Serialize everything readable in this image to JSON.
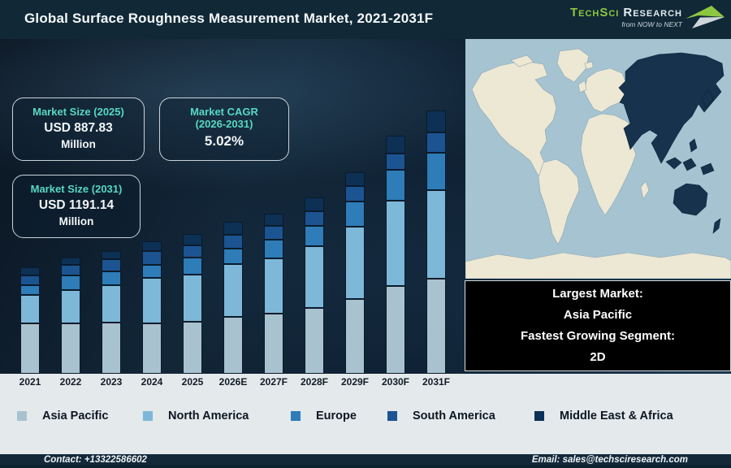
{
  "header": {
    "title": "Global Surface Roughness Measurement Market, 2021-2031F",
    "logo": {
      "brand_primary": "TechSci",
      "brand_secondary": "Research",
      "tagline": "from NOW to NEXT"
    }
  },
  "stats": [
    {
      "title_lines": [
        "Market Size (2025)"
      ],
      "value": "USD 887.83",
      "unit": "Million"
    },
    {
      "title_lines": [
        "Market CAGR",
        "(2026-2031)"
      ],
      "value": "5.02%",
      "unit": ""
    },
    {
      "title_lines": [
        "Market Size (2031)"
      ],
      "value": "USD 1191.14",
      "unit": "Million"
    }
  ],
  "chart_data": {
    "type": "bar",
    "stacked": true,
    "title": "Global Surface Roughness Measurement Market, 2021-2031F",
    "categories": [
      "2021",
      "2022",
      "2023",
      "2024",
      "2025",
      "2026E",
      "2027F",
      "2028F",
      "2029F",
      "2030F",
      "2031F"
    ],
    "series": [
      {
        "name": "Asia Pacific",
        "color": "#a9c2cf",
        "values": [
          62,
          62,
          63,
          62,
          64,
          70,
          74,
          81,
          92,
          108,
          117
        ]
      },
      {
        "name": "North America",
        "color": "#7db8d8",
        "values": [
          35,
          41,
          46,
          56,
          58,
          65,
          68,
          76,
          89,
          105,
          109
        ]
      },
      {
        "name": "Europe",
        "color": "#2e7cb8",
        "values": [
          12,
          18,
          17,
          16,
          21,
          19,
          23,
          25,
          31,
          38,
          46
        ]
      },
      {
        "name": "South America",
        "color": "#1c5492",
        "values": [
          12,
          13,
          15,
          17,
          15,
          17,
          17,
          18,
          19,
          20,
          25
        ]
      },
      {
        "name": "Middle East & Africa",
        "color": "#0d3055",
        "values": [
          10,
          9,
          10,
          12,
          14,
          16,
          15,
          17,
          17,
          22,
          27
        ]
      }
    ],
    "unit": "relative stacked height (no value axis shown in figure)",
    "value_axis_visible": false,
    "legend_position": "bottom",
    "known_points": {
      "market_size_2025_usd_million": 887.83,
      "market_size_2031_usd_million": 1191.14,
      "cagr_2026_2031_percent": 5.02
    }
  },
  "map": {
    "ocean_color": "#a6c3d2",
    "land_color": "#ece8d4",
    "highlight_color": "#16324d",
    "highlighted_region": "Asia Pacific"
  },
  "info_box": {
    "lines": [
      "Largest Market:",
      "Asia Pacific",
      "Fastest Growing Segment:",
      "2D"
    ]
  },
  "footer": {
    "contact": "Contact: +13322586602",
    "email": "Email: sales@techsciresearch.com"
  }
}
